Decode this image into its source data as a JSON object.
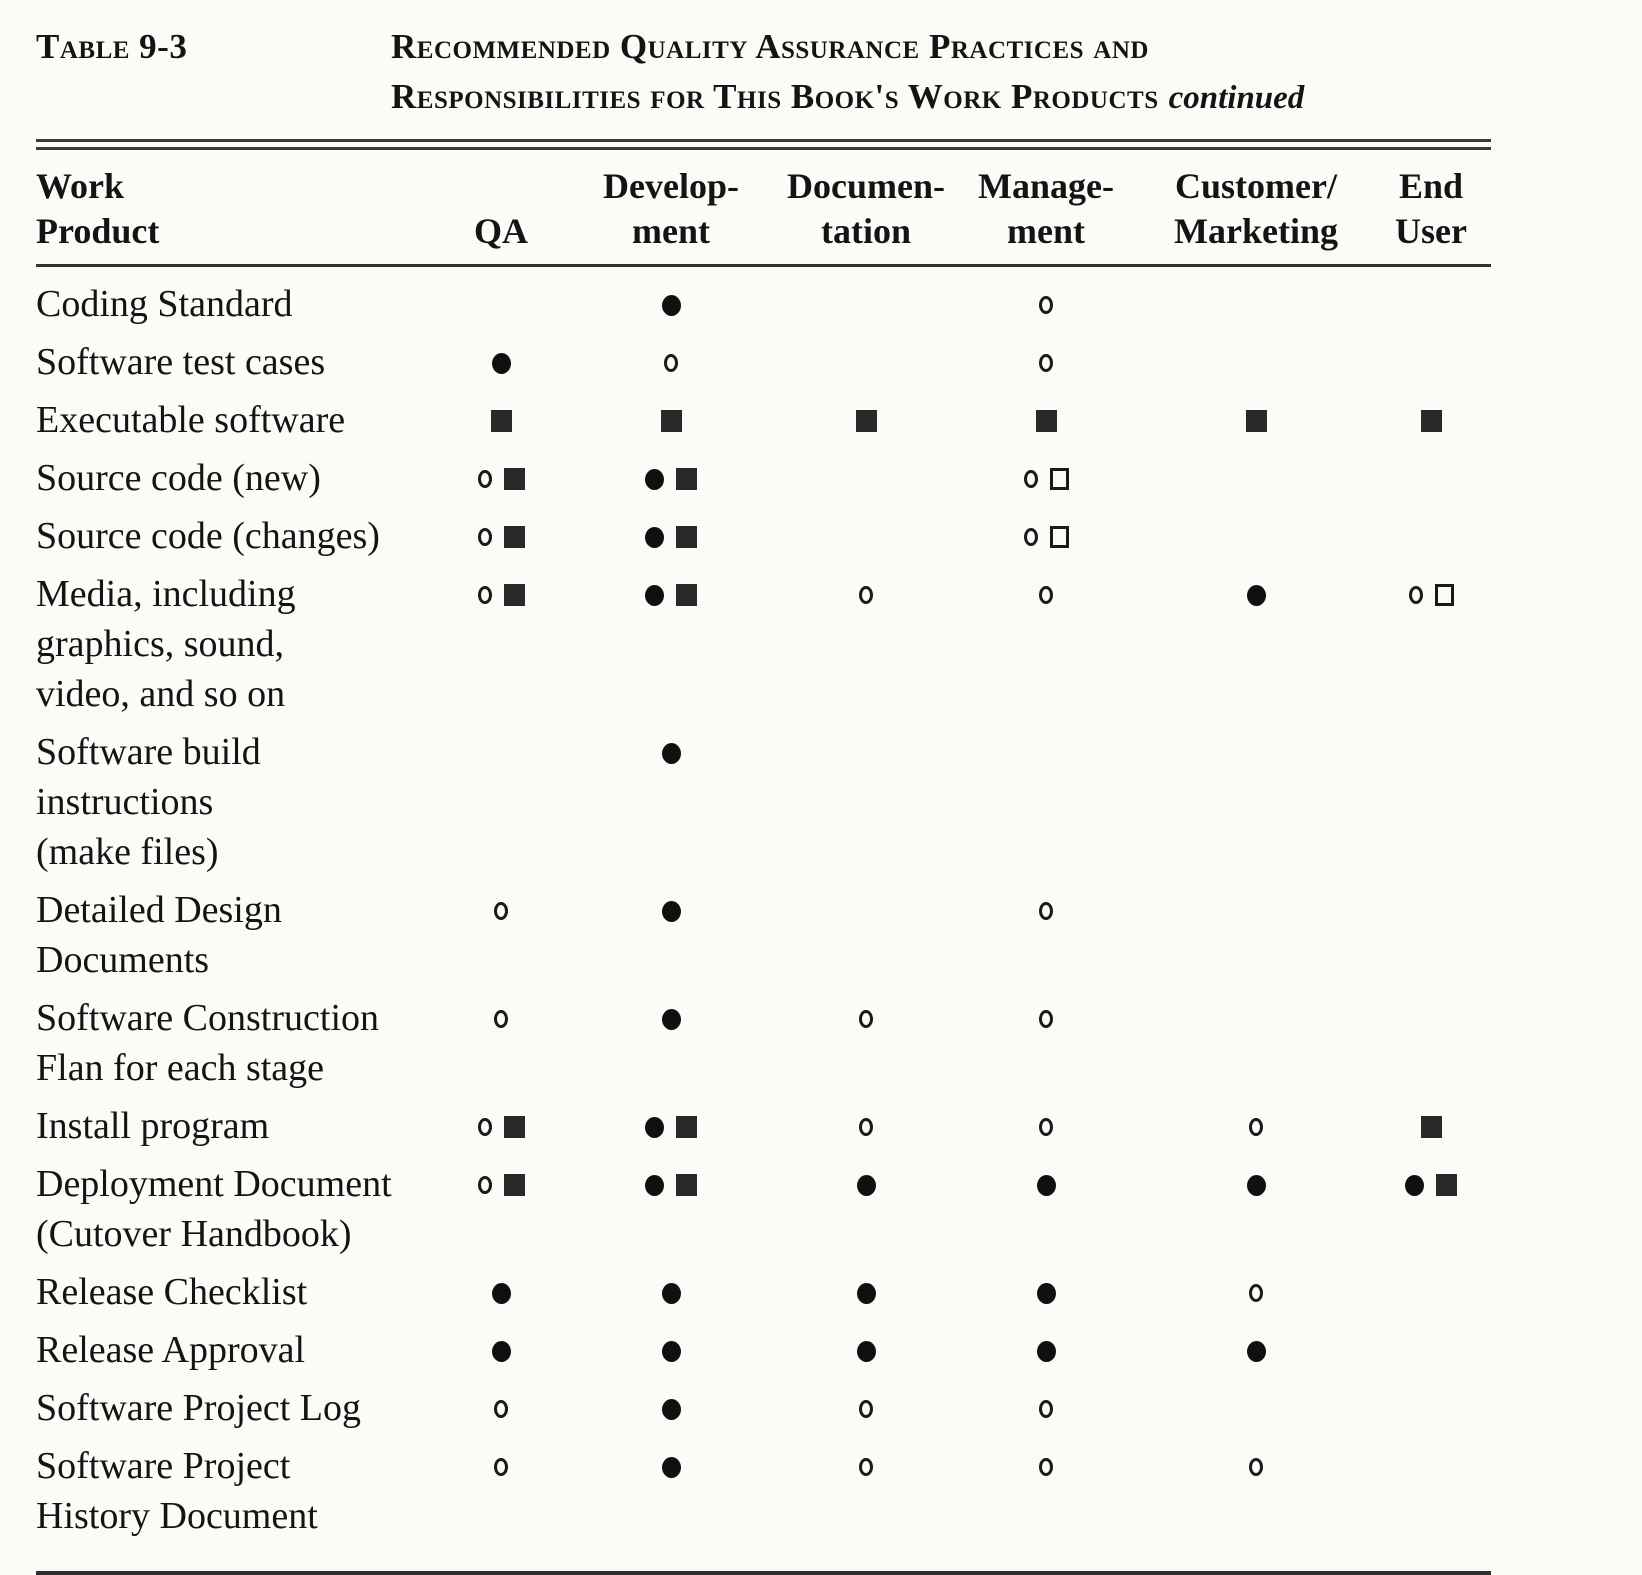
{
  "page": {
    "table_label": "Table 9-3",
    "title_line1": "Recommended Quality Assurance Practices and",
    "title_line2": "Responsibilities for This Book's Work Products",
    "title_continued": "continued"
  },
  "colors": {
    "ink": "#141414",
    "paper": "#fbfbf8",
    "rule": "#333333"
  },
  "table": {
    "columns": [
      {
        "line1": "Work",
        "line2": "Product"
      },
      {
        "line1": "",
        "line2": "QA"
      },
      {
        "line1": "Develop-",
        "line2": "ment"
      },
      {
        "line1": "Documen-",
        "line2": "tation"
      },
      {
        "line1": "Manage-",
        "line2": "ment"
      },
      {
        "line1": "Customer/",
        "line2": "Marketing"
      },
      {
        "line1": "End",
        "line2": "User"
      }
    ],
    "symbol_names": {
      "fc": "filled-circle-icon",
      "oc": "open-circle-icon",
      "fs": "filled-square-icon",
      "os": "open-square-icon"
    },
    "rows": [
      {
        "product": [
          "Coding Standard"
        ],
        "cells": [
          [],
          [
            "fc"
          ],
          [],
          [
            "oc"
          ],
          [],
          []
        ]
      },
      {
        "product": [
          "Software test cases"
        ],
        "cells": [
          [
            "fc"
          ],
          [
            "oc"
          ],
          [],
          [
            "oc"
          ],
          [],
          []
        ]
      },
      {
        "product": [
          "Executable software"
        ],
        "cells": [
          [
            "fs"
          ],
          [
            "fs"
          ],
          [
            "fs"
          ],
          [
            "fs"
          ],
          [
            "fs"
          ],
          [
            "fs"
          ]
        ]
      },
      {
        "product": [
          "Source code (new)"
        ],
        "cells": [
          [
            "oc",
            "fs"
          ],
          [
            "fc",
            "fs"
          ],
          [],
          [
            "oc",
            "os"
          ],
          [],
          []
        ]
      },
      {
        "product": [
          "Source code (changes)"
        ],
        "cells": [
          [
            "oc",
            "fs"
          ],
          [
            "fc",
            "fs"
          ],
          [],
          [
            "oc",
            "os"
          ],
          [],
          []
        ]
      },
      {
        "product": [
          "Media, including",
          "graphics, sound,",
          "video, and so on"
        ],
        "cells": [
          [
            "oc",
            "fs"
          ],
          [
            "fc",
            "fs"
          ],
          [
            "oc"
          ],
          [
            "oc"
          ],
          [
            "fc"
          ],
          [
            "oc",
            "os"
          ]
        ]
      },
      {
        "product": [
          "Software build",
          "instructions",
          "(make files)"
        ],
        "cells": [
          [],
          [
            "fc"
          ],
          [],
          [],
          [],
          []
        ]
      },
      {
        "product": [
          "Detailed Design",
          "Documents"
        ],
        "cells": [
          [
            "oc"
          ],
          [
            "fc"
          ],
          [],
          [
            "oc"
          ],
          [],
          []
        ]
      },
      {
        "product": [
          "Software Construction",
          "Flan for each stage"
        ],
        "cells": [
          [
            "oc"
          ],
          [
            "fc"
          ],
          [
            "oc"
          ],
          [
            "oc"
          ],
          [],
          []
        ]
      },
      {
        "product": [
          "Install program"
        ],
        "cells": [
          [
            "oc",
            "fs"
          ],
          [
            "fc",
            "fs"
          ],
          [
            "oc"
          ],
          [
            "oc"
          ],
          [
            "oc"
          ],
          [
            "fs"
          ]
        ]
      },
      {
        "product": [
          "Deployment Document",
          "(Cutover Handbook)"
        ],
        "cells": [
          [
            "oc",
            "fs"
          ],
          [
            "fc",
            "fs"
          ],
          [
            "fc"
          ],
          [
            "fc"
          ],
          [
            "fc"
          ],
          [
            "fc",
            "fs"
          ]
        ]
      },
      {
        "product": [
          "Release Checklist"
        ],
        "cells": [
          [
            "fc"
          ],
          [
            "fc"
          ],
          [
            "fc"
          ],
          [
            "fc"
          ],
          [
            "oc"
          ],
          []
        ]
      },
      {
        "product": [
          "Release Approval"
        ],
        "cells": [
          [
            "fc"
          ],
          [
            "fc"
          ],
          [
            "fc"
          ],
          [
            "fc"
          ],
          [
            "fc"
          ],
          []
        ]
      },
      {
        "product": [
          "Software Project Log"
        ],
        "cells": [
          [
            "oc"
          ],
          [
            "fc"
          ],
          [
            "oc"
          ],
          [
            "oc"
          ],
          [],
          []
        ]
      },
      {
        "product": [
          "Software Project",
          "History Document"
        ],
        "cells": [
          [
            "oc"
          ],
          [
            "fc"
          ],
          [
            "oc"
          ],
          [
            "oc"
          ],
          [
            "oc"
          ],
          []
        ]
      }
    ]
  }
}
